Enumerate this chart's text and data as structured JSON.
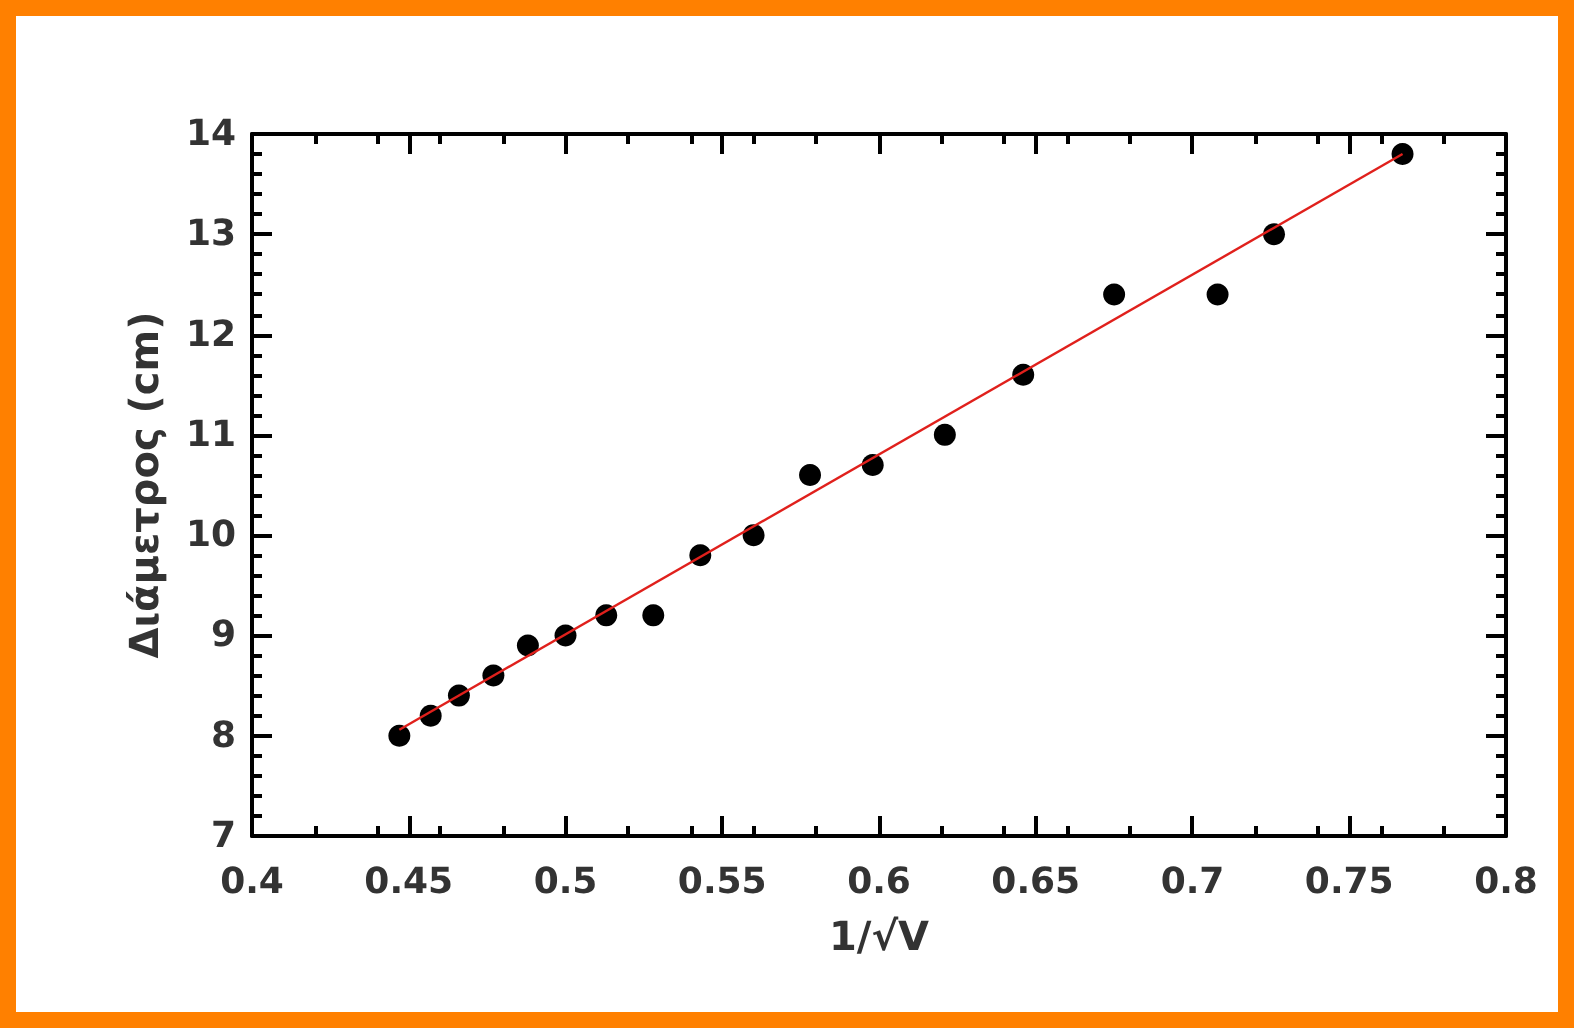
{
  "chart_data": {
    "type": "scatter",
    "xlabel": "1/√V",
    "ylabel": "Διάμετρος (cm)",
    "x": [
      0.447,
      0.457,
      0.466,
      0.477,
      0.488,
      0.5,
      0.513,
      0.528,
      0.543,
      0.56,
      0.578,
      0.598,
      0.621,
      0.646,
      0.675,
      0.708,
      0.726,
      0.767
    ],
    "series": [
      {
        "color": "#000000",
        "values": [
          8.0,
          8.2,
          8.4,
          8.6,
          8.9,
          9.0,
          9.2,
          9.2,
          9.8,
          10.0,
          10.6,
          10.7,
          11.0,
          11.6,
          12.4,
          12.4,
          13.0,
          13.8
        ]
      },
      {
        "type": "line",
        "color": "#e0201c",
        "x": [
          0.447,
          0.767
        ],
        "values": [
          8.06,
          13.8
        ],
        "marker": "none"
      }
    ],
    "xlim": [
      0.4,
      0.8
    ],
    "xticks": [
      0.4,
      0.45,
      0.5,
      0.55,
      0.6,
      0.65,
      0.7,
      0.75,
      0.8
    ],
    "ylim": [
      7,
      14
    ],
    "yticks": [
      7,
      8,
      9,
      10,
      11,
      12,
      13,
      14
    ],
    "marker": "circle",
    "line_style": "solid",
    "grid": false
  }
}
